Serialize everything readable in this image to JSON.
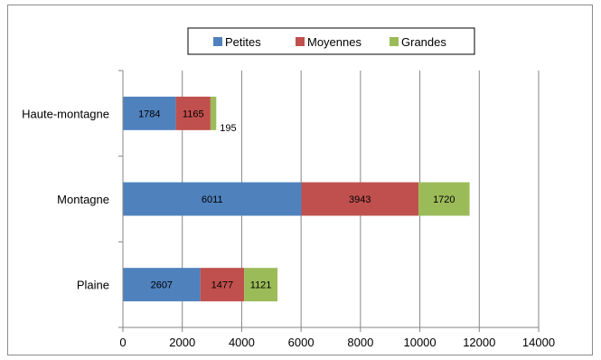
{
  "chart_data": {
    "type": "bar",
    "orientation": "horizontal",
    "stacked": true,
    "categories": [
      "Haute-montagne",
      "Montagne",
      "Plaine"
    ],
    "series": [
      {
        "name": "Petites",
        "color": "#4f81bd",
        "values": [
          1784,
          6011,
          2607
        ]
      },
      {
        "name": "Moyennes",
        "color": "#c0504d",
        "values": [
          1165,
          3943,
          1477
        ]
      },
      {
        "name": "Grandes",
        "color": "#9bbb59",
        "values": [
          195,
          1720,
          1121
        ]
      }
    ],
    "xlim": [
      0,
      14000
    ],
    "x_ticks": [
      "0",
      "2000",
      "4000",
      "6000",
      "8000",
      "10000",
      "12000",
      "14000"
    ],
    "grid": "vertical",
    "legend_position": "top",
    "title": "",
    "xlabel": "",
    "ylabel": ""
  }
}
